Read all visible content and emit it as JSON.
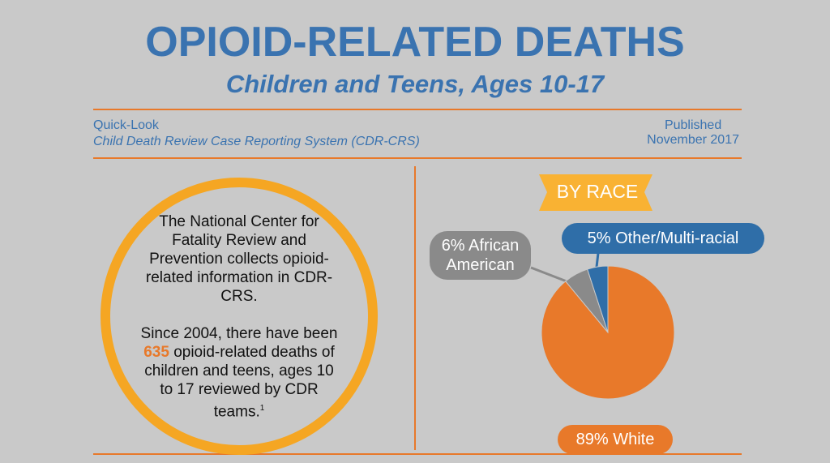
{
  "header": {
    "title": "OPIOID-RELATED DEATHS",
    "subtitle": "Children and Teens, Ages 10-17",
    "left_line1": "Quick-Look",
    "left_line2": "Child Death Review Case Reporting System (CDR-CRS)",
    "right_line1": "Published",
    "right_line2": "November 2017"
  },
  "circle": {
    "paragraph1": "The National Center for Fatality Review and Prevention collects opioid-related information in CDR-CRS.",
    "paragraph2_before": "Since 2004, there have been",
    "paragraph2_number": "635",
    "paragraph2_after": "opioid-related deaths of children and teens, ages 10 to 17 reviewed by CDR teams.",
    "footnote": "1"
  },
  "chart_data": {
    "type": "pie",
    "title": "BY RACE",
    "values": [
      89,
      6,
      5
    ],
    "value_labels": [
      "89% White",
      "6% African American",
      "5% Other/Multi-racial"
    ],
    "colors": [
      "#e8792a",
      "#8a8a8a",
      "#2f6ea8"
    ]
  }
}
